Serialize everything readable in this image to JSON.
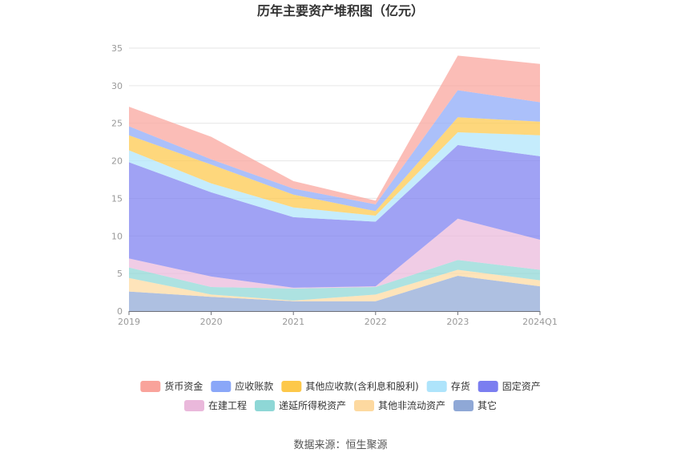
{
  "chart_data": {
    "type": "area",
    "stacked": true,
    "title": "历年主要资产堆积图（亿元）",
    "x": [
      "2019",
      "2020",
      "2021",
      "2022",
      "2023",
      "2024Q1"
    ],
    "ylim": [
      0,
      35
    ],
    "yticks": [
      0,
      5,
      10,
      15,
      20,
      25,
      30,
      35
    ],
    "grid": true,
    "legend_placement": "bottom",
    "series": [
      {
        "name": "其它",
        "color": "#8fa8d6",
        "values": [
          2.6,
          1.9,
          1.3,
          1.3,
          4.7,
          3.3
        ]
      },
      {
        "name": "其他非流动资产",
        "color": "#fdd9a0",
        "values": [
          1.8,
          0.3,
          0.1,
          0.9,
          0.8,
          0.8
        ]
      },
      {
        "name": "递延所得税资产",
        "color": "#8ed7d6",
        "values": [
          1.4,
          1.0,
          1.6,
          1.0,
          1.3,
          1.4
        ]
      },
      {
        "name": "在建工程",
        "color": "#eab8db",
        "values": [
          1.2,
          1.4,
          0.1,
          0.1,
          5.5,
          4.0
        ]
      },
      {
        "name": "固定资产",
        "color": "#7b7ef0",
        "values": [
          12.8,
          11.2,
          9.4,
          8.6,
          9.8,
          11.1
        ]
      },
      {
        "name": "存货",
        "color": "#aee4fb",
        "values": [
          1.6,
          1.2,
          1.3,
          0.8,
          1.7,
          2.8
        ]
      },
      {
        "name": "其他应收款(含利息和股利)",
        "color": "#fdc84a",
        "values": [
          2.0,
          2.5,
          1.7,
          0.6,
          2.0,
          1.8
        ]
      },
      {
        "name": "应收账款",
        "color": "#8aa7f8",
        "values": [
          1.2,
          0.7,
          0.8,
          0.9,
          3.6,
          2.6
        ]
      },
      {
        "name": "货币资金",
        "color": "#f9a39b",
        "values": [
          2.6,
          3.0,
          1.0,
          0.5,
          4.6,
          5.1
        ]
      }
    ],
    "legend_order": [
      "货币资金",
      "应收账款",
      "其他应收款(含利息和股利)",
      "存货",
      "固定资产",
      "在建工程",
      "递延所得税资产",
      "其他非流动资产",
      "其它"
    ]
  },
  "source_text": "数据来源：恒生聚源"
}
